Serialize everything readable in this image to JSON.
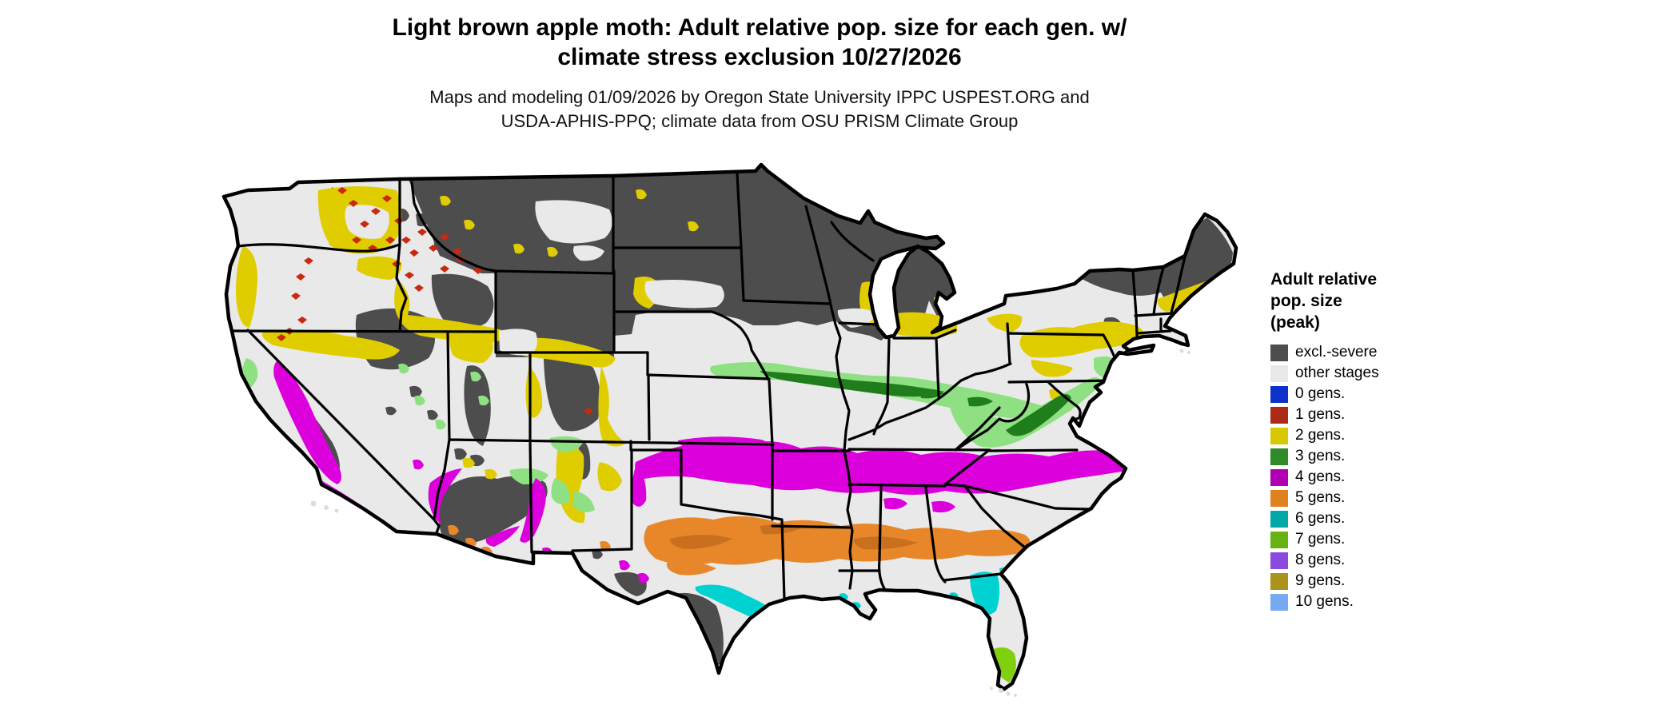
{
  "title": {
    "line1": "Light brown apple moth: Adult relative pop. size for each gen. w/",
    "line2": "climate stress exclusion 10/27/2026"
  },
  "subtitle": {
    "line1": "Maps and modeling 01/09/2026 by Oregon State University IPPC USPEST.ORG and",
    "line2": "USDA-APHIS-PPQ; climate data from OSU PRISM Climate Group"
  },
  "legend": {
    "title_line1": "Adult relative",
    "title_line2": "pop. size",
    "title_line3": "(peak)",
    "items": [
      {
        "label": "excl.-severe",
        "color": "#4d4d4d"
      },
      {
        "label": "other stages",
        "color": "#e8e8e8"
      },
      {
        "label": "0 gens.",
        "color": "#0b32cb"
      },
      {
        "label": "1 gens.",
        "color": "#ad2a17"
      },
      {
        "label": "2 gens.",
        "color": "#d9c700"
      },
      {
        "label": "3 gens.",
        "color": "#2e8b27"
      },
      {
        "label": "4 gens.",
        "color": "#b100b1"
      },
      {
        "label": "5 gens.",
        "color": "#e08120"
      },
      {
        "label": "6 gens.",
        "color": "#02a8a8"
      },
      {
        "label": "7 gens.",
        "color": "#67b212"
      },
      {
        "label": "8 gens.",
        "color": "#8b4ade"
      },
      {
        "label": "9 gens.",
        "color": "#a9931c"
      },
      {
        "label": "10 gens.",
        "color": "#75aaf0"
      }
    ]
  },
  "map": {
    "layer_colors": {
      "base": "#e9e9e9",
      "excluded": "#4d4d4d",
      "lightpunch": "#e9e9e9",
      "gen1": "#c9290f",
      "gen2": "#e0cd00",
      "gen3-light": "#8fe083",
      "gen3-dark": "#1f7d1c",
      "gen4": "#dc00dc",
      "gen5": "#e8872a",
      "gen5-dark": "#c9701e",
      "gen6": "#00d2d2",
      "gen7": "#80d011",
      "islands": "#dcdcdc",
      "border": "#000000"
    }
  },
  "chart_data": {
    "type": "choropleth",
    "title": "Light brown apple moth: Adult relative pop. size for each gen. w/ climate stress exclusion 10/27/2026",
    "subtitle": "Maps and modeling 01/09/2026 by Oregon State University IPPC USPEST.ORG and USDA-APHIS-PPQ; climate data from OSU PRISM Climate Group",
    "legend_title": "Adult relative pop. size (peak)",
    "legend_position": "right",
    "categories": [
      "excl.-severe",
      "other stages",
      "0 gens.",
      "1 gens.",
      "2 gens.",
      "3 gens.",
      "4 gens.",
      "5 gens.",
      "6 gens.",
      "7 gens.",
      "8 gens.",
      "9 gens.",
      "10 gens."
    ],
    "colors": [
      "#4d4d4d",
      "#e8e8e8",
      "#0b32cb",
      "#ad2a17",
      "#d9c700",
      "#2e8b27",
      "#b100b1",
      "#e08120",
      "#02a8a8",
      "#67b212",
      "#8b4ade",
      "#a9931c",
      "#75aaf0"
    ],
    "region_summary": {
      "excl.-severe": "Montana, the Dakotas, Minnesota, Wisconsin, Michigan, northern New England/Adirondacks/Maine, high Rockies (ID, WY, UT, CO), Sierra Nevada and Cascades, low-desert southern Arizona, far south Texas",
      "other stages": "Broad background over the central plains, Midwest, mid-Atlantic, Gulf coastal plain and Great Basin valleys",
      "1 gens.": "Speckled patches in eastern Washington, north Idaho, western Montana and the Oregon Cascades",
      "2 gens.": "Columbia Basin ring, eastern Oregon / Snake River fringe, northern Nevada/Utah, western Colorado fringes, western South Dakota, southern New York / northern Pennsylvania band, coastal New England, Lake Michigan shores",
      "3 gens.": "Band from Nebraska through Iowa, Illinois, Indiana, Ohio into Kentucky/West Virginia Appalachians; mid-elevation fringes in NM/AZ/NV and California coast ranges; New Jersey",
      "4 gens.": "California Central Valley and south coast; band across southern Kansas, Oklahoma, Arkansas, Tennessee, northern Alabama/Georgia to the Carolina piedmont and Virginia coast; Rio Grande valley of New Mexico",
      "5 gens.": "Band across central Texas, Louisiana, central Mississippi/Alabama/Georgia into South Carolina midlands; spots in southern Arizona",
      "6 gens.": "South Texas Gulf coast, Louisiana coast spots, north-central Florida",
      "7 gens.": "Southern tip of Florida",
      "0 gens.": "not visible on map",
      "8 gens.": "not visible on map",
      "9 gens.": "not visible on map",
      "10 gens.": "not visible on map"
    }
  }
}
